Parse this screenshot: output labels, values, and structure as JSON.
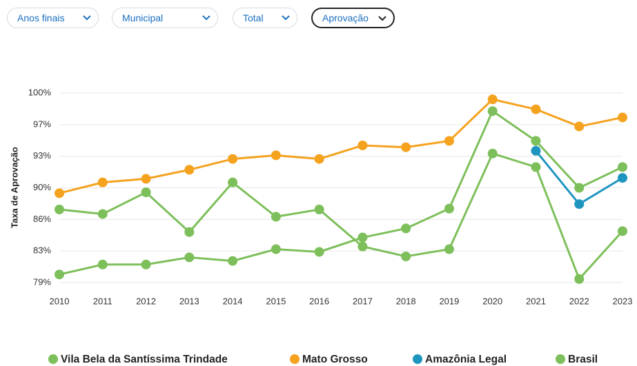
{
  "filters": [
    "Anos finais",
    "Municipal",
    "Total",
    "Aprovação"
  ],
  "chart_data": {
    "type": "line",
    "y_label": "Taxa de Aprovação",
    "categories": [
      "2010",
      "2011",
      "2012",
      "2013",
      "2014",
      "2015",
      "2016",
      "2017",
      "2018",
      "2019",
      "2020",
      "2021",
      "2022",
      "2023"
    ],
    "series": [
      {
        "name": "Vila Bela da Santíssima Trindade",
        "color": "#7dbf5a",
        "values": [
          87.1,
          86.6,
          89.0,
          84.6,
          90.1,
          86.3,
          87.1,
          83.0,
          81.9,
          82.7,
          93.3,
          91.8,
          79.4,
          84.7
        ]
      },
      {
        "name": "Mato Grosso",
        "color": "#f5a21e",
        "values": [
          88.9,
          90.1,
          90.5,
          91.5,
          92.7,
          93.1,
          92.7,
          94.2,
          94.0,
          94.7,
          99.3,
          98.2,
          96.3,
          97.3
        ]
      },
      {
        "name": "Amazônia Legal",
        "color": "#1e95bf",
        "values": [
          null,
          null,
          null,
          null,
          null,
          null,
          null,
          null,
          null,
          null,
          null,
          93.6,
          87.7,
          90.6
        ]
      },
      {
        "name": "Brasil",
        "color": "#7dbf5a",
        "values": [
          79.9,
          81.0,
          81.0,
          81.8,
          81.4,
          82.7,
          82.4,
          84.0,
          85.0,
          87.2,
          98.0,
          94.7,
          89.5,
          91.8
        ]
      }
    ],
    "ylim": [
      79,
      100
    ],
    "yticks": [
      {
        "value": 79,
        "label": "79%"
      },
      {
        "value": 82.5,
        "label": "83%"
      },
      {
        "value": 86,
        "label": "86%"
      },
      {
        "value": 89.5,
        "label": "90%"
      },
      {
        "value": 93,
        "label": "93%"
      },
      {
        "value": 96.5,
        "label": "97%"
      },
      {
        "value": 100,
        "label": "100%"
      }
    ],
    "grid": true
  }
}
